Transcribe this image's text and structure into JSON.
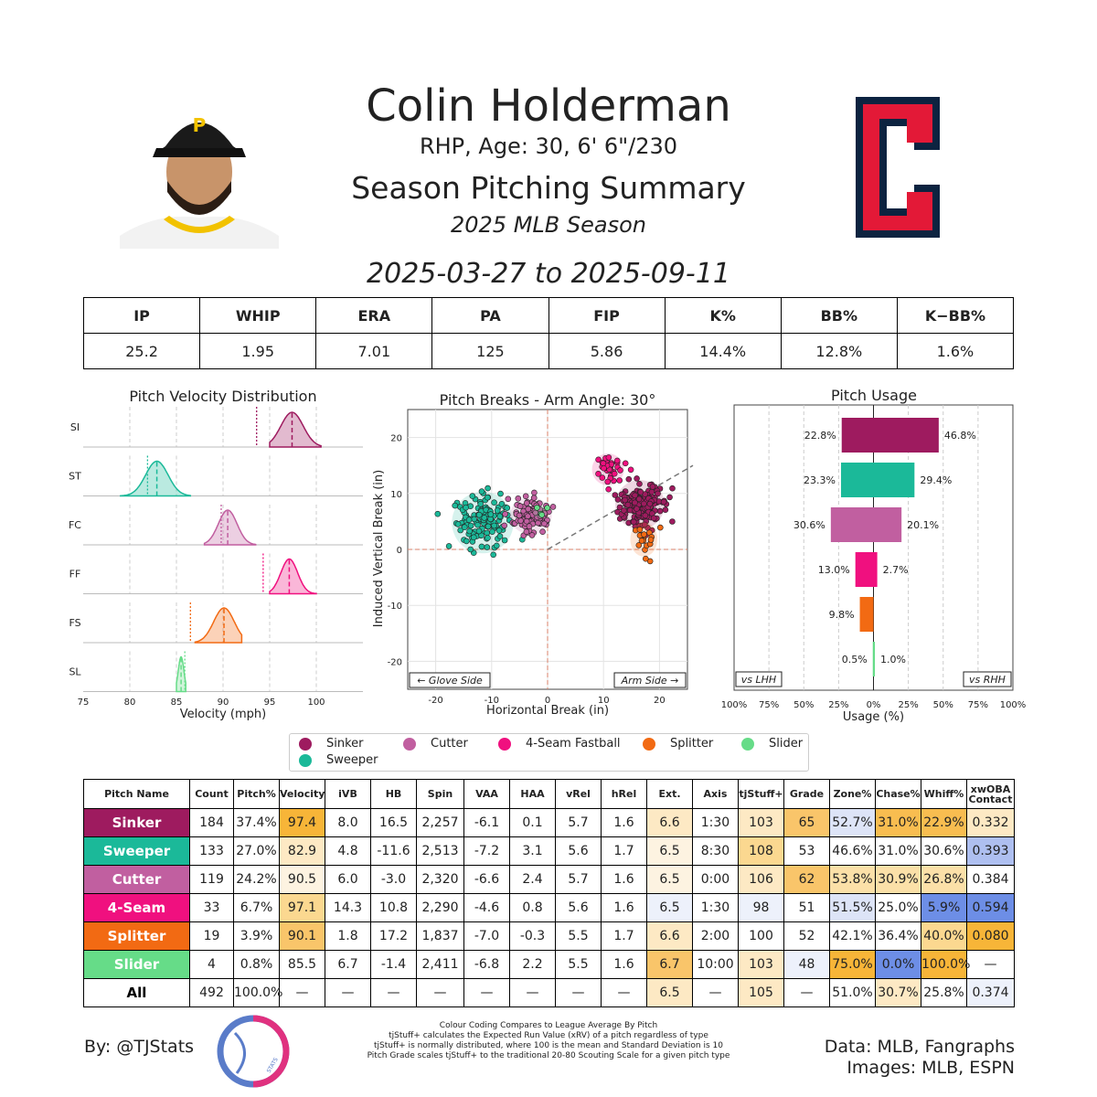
{
  "header": {
    "name": "Colin Holderman",
    "bio": "RHP, Age: 30, 6' 6\"/230",
    "summary_title": "Season Pitching Summary",
    "season": "2025 MLB Season",
    "date_range": "2025-03-27 to 2025-09-11",
    "team_logo_letter": "C"
  },
  "colors": {
    "Sinker": "#9e1b5f",
    "Sweeper": "#1bb999",
    "Cutter": "#c15fa0",
    "4-Seam Fastball": "#f0107f",
    "Splitter": "#f26a13",
    "Slider": "#66dc88"
  },
  "stats": {
    "headers": [
      "IP",
      "WHIP",
      "ERA",
      "PA",
      "FIP",
      "K%",
      "BB%",
      "K−BB%"
    ],
    "values": [
      "25.2",
      "1.95",
      "7.01",
      "125",
      "5.86",
      "14.4%",
      "12.8%",
      "1.6%"
    ]
  },
  "chart_data": [
    {
      "type": "density",
      "title": "Pitch Velocity Distribution",
      "xlabel": "Velocity (mph)",
      "xlim": [
        75,
        105
      ],
      "xticks": [
        "75",
        "80",
        "85",
        "90",
        "95",
        "100"
      ],
      "series": [
        {
          "label": "SI",
          "pitch": "Sinker",
          "mean": 97.4,
          "sd": 1.2,
          "league_avg": 93.6,
          "min": 95.0,
          "max": 100.5
        },
        {
          "label": "ST",
          "pitch": "Sweeper",
          "mean": 82.9,
          "sd": 1.2,
          "league_avg": 81.9,
          "min": 79.0,
          "max": 86.5
        },
        {
          "label": "FC",
          "pitch": "Cutter",
          "mean": 90.5,
          "sd": 1.0,
          "league_avg": 89.8,
          "min": 88.0,
          "max": 93.5
        },
        {
          "label": "FF",
          "pitch": "4-Seam Fastball",
          "mean": 97.1,
          "sd": 0.9,
          "league_avg": 94.3,
          "min": 95.0,
          "max": 100.0
        },
        {
          "label": "FS",
          "pitch": "Splitter",
          "mean": 90.1,
          "sd": 1.1,
          "league_avg": 86.5,
          "min": 87.0,
          "max": 92.0
        },
        {
          "label": "SL",
          "pitch": "Slider",
          "mean": 85.5,
          "sd": 0.3,
          "league_avg": 85.9,
          "min": 85.0,
          "max": 86.0
        }
      ]
    },
    {
      "type": "scatter",
      "title": "Pitch Breaks - Arm Angle: 30°",
      "xlabel": "Horizontal Break (in)",
      "ylabel": "Induced Vertical Break (in)",
      "xlim": [
        -25,
        25
      ],
      "ylim": [
        -25,
        25
      ],
      "xticks": [
        "-20",
        "-10",
        "0",
        "10",
        "20"
      ],
      "yticks": [
        "20",
        "10",
        "0",
        "-10",
        "-20"
      ],
      "arm_angle_deg": 30,
      "glove_label": "← Glove Side",
      "arm_label": "Arm Side →",
      "clusters": [
        {
          "pitch": "Sinker",
          "cx": 16.5,
          "cy": 8.0,
          "sx": 2.0,
          "sy": 2.0,
          "n": 184
        },
        {
          "pitch": "Sweeper",
          "cx": -11.6,
          "cy": 4.8,
          "sx": 2.5,
          "sy": 2.5,
          "n": 133
        },
        {
          "pitch": "Cutter",
          "cx": -3.0,
          "cy": 6.0,
          "sx": 1.7,
          "sy": 1.5,
          "n": 119
        },
        {
          "pitch": "4-Seam Fastball",
          "cx": 10.8,
          "cy": 14.3,
          "sx": 1.3,
          "sy": 1.3,
          "n": 33
        },
        {
          "pitch": "Splitter",
          "cx": 17.2,
          "cy": 1.8,
          "sx": 1.1,
          "sy": 1.4,
          "n": 19
        },
        {
          "pitch": "Slider",
          "cx": -1.4,
          "cy": 6.7,
          "sx": 0.5,
          "sy": 0.5,
          "n": 4
        }
      ]
    },
    {
      "type": "bar",
      "title": "Pitch Usage",
      "xlabel": "Usage (%)",
      "xlim": [
        -100,
        100
      ],
      "xticks": [
        "100%",
        "75%",
        "50%",
        "25%",
        "0%",
        "25%",
        "50%",
        "75%",
        "100%"
      ],
      "left_label": "vs LHH",
      "right_label": "vs RHH",
      "series": [
        {
          "pitch": "Sinker",
          "lhh": 22.8,
          "rhh": 46.8,
          "lhh_label": "22.8%",
          "rhh_label": "46.8%"
        },
        {
          "pitch": "Sweeper",
          "lhh": 23.3,
          "rhh": 29.4,
          "lhh_label": "23.3%",
          "rhh_label": "29.4%"
        },
        {
          "pitch": "Cutter",
          "lhh": 30.6,
          "rhh": 20.1,
          "lhh_label": "30.6%",
          "rhh_label": "20.1%"
        },
        {
          "pitch": "4-Seam Fastball",
          "lhh": 13.0,
          "rhh": 2.7,
          "lhh_label": "13.0%",
          "rhh_label": "2.7%"
        },
        {
          "pitch": "Splitter",
          "lhh": 9.8,
          "rhh": 0,
          "lhh_label": "9.8%",
          "rhh_label": ""
        },
        {
          "pitch": "Slider",
          "lhh": 0.5,
          "rhh": 1.0,
          "lhh_label": "0.5%",
          "rhh_label": "1.0%"
        }
      ]
    }
  ],
  "legend": [
    "Sinker",
    "Cutter",
    "4-Seam Fastball",
    "Splitter",
    "Slider",
    "Sweeper"
  ],
  "pitch_table": {
    "headers": [
      "Pitch Name",
      "Count",
      "Pitch%",
      "Velocity",
      "iVB",
      "HB",
      "Spin",
      "VAA",
      "HAA",
      "vRel",
      "hRel",
      "Ext.",
      "Axis",
      "tjStuff+",
      "Grade",
      "Zone%",
      "Chase%",
      "Whiff%",
      "xwOBA Contact"
    ],
    "rows": [
      {
        "pitch": "Sinker",
        "color": "#9e1b5f",
        "cells": [
          "Sinker",
          "184",
          "37.4%",
          "97.4",
          "8.0",
          "16.5",
          "2,257",
          "-6.1",
          "0.1",
          "5.7",
          "1.6",
          "6.6",
          "1:30",
          "103",
          "65",
          "52.7%",
          "31.0%",
          "22.9%",
          "0.332"
        ],
        "bg": [
          "",
          "",
          "",
          "#f7b538",
          "",
          "",
          "",
          "",
          "",
          "",
          "",
          "#fde9c4",
          "",
          "#fde9c4",
          "#f9c56a",
          "#dde4f7",
          "#f8bd50",
          "#f8bd50",
          "#fde9c4"
        ]
      },
      {
        "pitch": "Sweeper",
        "color": "#1bb999",
        "cells": [
          "Sweeper",
          "133",
          "27.0%",
          "82.9",
          "4.8",
          "-11.6",
          "2,513",
          "-7.2",
          "3.1",
          "5.6",
          "1.7",
          "6.5",
          "8:30",
          "108",
          "53",
          "46.6%",
          "31.0%",
          "30.6%",
          "0.393"
        ],
        "bg": [
          "",
          "",
          "",
          "#fde9c4",
          "",
          "",
          "",
          "",
          "",
          "",
          "",
          "#fdf3e1",
          "",
          "#fbd890",
          "",
          "",
          "",
          "",
          "#aebff0"
        ]
      },
      {
        "pitch": "Cutter",
        "color": "#c15fa0",
        "cells": [
          "Cutter",
          "119",
          "24.2%",
          "90.5",
          "6.0",
          "-3.0",
          "2,320",
          "-6.6",
          "2.4",
          "5.7",
          "1.6",
          "6.5",
          "0:00",
          "106",
          "62",
          "53.8%",
          "30.9%",
          "26.8%",
          "0.384"
        ],
        "bg": [
          "",
          "",
          "",
          "#fdf3e1",
          "",
          "",
          "",
          "",
          "",
          "",
          "",
          "#fdf3e1",
          "",
          "#fde9c4",
          "#f9c56a",
          "#fbe0a8",
          "#fbe0a8",
          "#fbe0a8",
          ""
        ]
      },
      {
        "pitch": "4-Seam",
        "color": "#f0107f",
        "cells": [
          "4-Seam",
          "33",
          "6.7%",
          "97.1",
          "14.3",
          "10.8",
          "2,290",
          "-4.6",
          "0.8",
          "5.6",
          "1.6",
          "6.5",
          "1:30",
          "98",
          "51",
          "51.5%",
          "25.0%",
          "5.9%",
          "0.594"
        ],
        "bg": [
          "",
          "",
          "",
          "#fbd890",
          "",
          "",
          "",
          "",
          "",
          "",
          "",
          "#edf1fb",
          "",
          "#edf1fb",
          "",
          "#dde4f7",
          "",
          "#6d8ee6",
          "#6d8ee6"
        ]
      },
      {
        "pitch": "Splitter",
        "color": "#f26a13",
        "cells": [
          "Splitter",
          "19",
          "3.9%",
          "90.1",
          "1.8",
          "17.2",
          "1,837",
          "-7.0",
          "-0.3",
          "5.5",
          "1.7",
          "6.6",
          "2:00",
          "100",
          "52",
          "42.1%",
          "36.4%",
          "40.0%",
          "0.080"
        ],
        "bg": [
          "",
          "",
          "",
          "#f9c56a",
          "",
          "",
          "",
          "",
          "",
          "",
          "",
          "#fde9c4",
          "",
          "",
          "",
          "",
          "",
          "#fbd890",
          "#f7b538"
        ]
      },
      {
        "pitch": "Slider",
        "color": "#66dc88",
        "cells": [
          "Slider",
          "4",
          "0.8%",
          "85.5",
          "6.7",
          "-1.4",
          "2,411",
          "-6.8",
          "2.2",
          "5.5",
          "1.6",
          "6.7",
          "10:00",
          "103",
          "48",
          "75.0%",
          "0.0%",
          "100.0%",
          "—"
        ],
        "bg": [
          "",
          "",
          "",
          "",
          "",
          "",
          "",
          "",
          "",
          "",
          "",
          "#f9c56a",
          "",
          "#fde9c4",
          "#edf1fb",
          "#f7b538",
          "#6d8ee6",
          "#f7b538",
          ""
        ]
      },
      {
        "pitch": "All",
        "color": "#ffffff",
        "cells": [
          "All",
          "492",
          "100.0%",
          "—",
          "—",
          "—",
          "—",
          "—",
          "—",
          "—",
          "—",
          "6.5",
          "—",
          "105",
          "—",
          "51.0%",
          "30.7%",
          "25.8%",
          "0.374"
        ],
        "bg": [
          "",
          "",
          "",
          "",
          "",
          "",
          "",
          "",
          "",
          "",
          "",
          "#fde9c4",
          "",
          "#fde9c4",
          "",
          "",
          "#fde9c4",
          "",
          "#edf1fb"
        ]
      }
    ]
  },
  "footer": {
    "author": "By: @TJStats",
    "notes": [
      "Colour Coding Compares to League Average By Pitch",
      "tjStuff+ calculates the Expected Run Value (xRV) of a pitch regardless of type",
      "tjStuff+ is normally distributed, where 100 is the mean and Standard Deviation is 10",
      "Pitch Grade scales tjStuff+ to the traditional 20-80 Scouting Scale for a given pitch type"
    ],
    "data_source": "Data: MLB, Fangraphs",
    "image_source": "Images: MLB, ESPN",
    "logo_text": "STATS"
  }
}
